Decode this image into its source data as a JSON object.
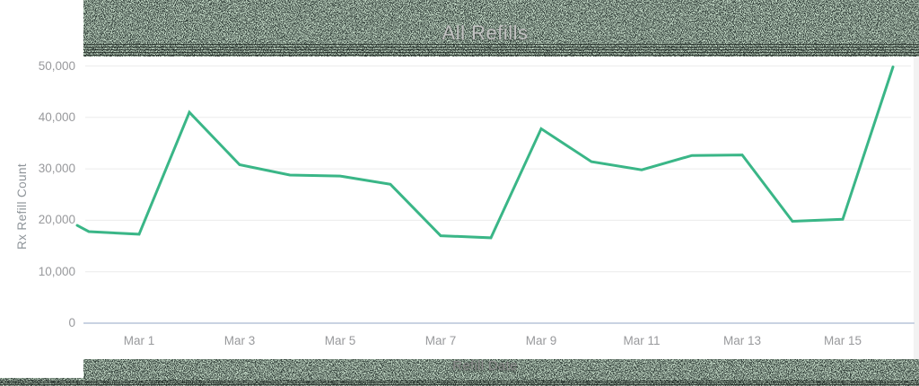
{
  "title": {
    "text": "All Refills"
  },
  "axes": {
    "y_title": "Rx Refill Count",
    "x_title": "Refill Date"
  },
  "colors": {
    "line": "#3ab687",
    "grid": "#ececec",
    "baseline": "#c9d3e2",
    "tick_label": "#98999c",
    "axis_title": "#8e9499",
    "xlabel_text": "#8f8f8f",
    "chart_title_text": "#c2c2c2",
    "plot_bg": "#ffffff",
    "noise_green": "#80a385",
    "noise_black": "#0a0f0d"
  },
  "chart_data": {
    "type": "line",
    "title": "All Refills",
    "xlabel": "Refill Date",
    "ylabel": "Rx Refill Count",
    "x": [
      "Feb 28",
      "Mar 1",
      "Mar 2",
      "Mar 3",
      "Mar 4",
      "Mar 5",
      "Mar 6",
      "Mar 7",
      "Mar 8",
      "Mar 9",
      "Mar 10",
      "Mar 11",
      "Mar 12",
      "Mar 13",
      "Mar 14",
      "Mar 15",
      "Mar 16"
    ],
    "series": [
      {
        "name": "Rx Refill Count",
        "values": [
          17800,
          17300,
          41000,
          30800,
          28800,
          28600,
          27000,
          17000,
          16600,
          37800,
          31400,
          29800,
          32600,
          32700,
          19800,
          20200,
          49800
        ]
      }
    ],
    "clipped_left_value": 19000,
    "ylim": [
      0,
      50000
    ],
    "y_tick_step": 10000,
    "y_tick_labels": [
      "0",
      "10,000",
      "20,000",
      "30,000",
      "40,000",
      "50,000"
    ],
    "x_tick_labels": [
      "Mar 1",
      "Mar 3",
      "Mar 5",
      "Mar 7",
      "Mar 9",
      "Mar 11",
      "Mar 13",
      "Mar 15"
    ],
    "grid": true,
    "legend": false
  }
}
